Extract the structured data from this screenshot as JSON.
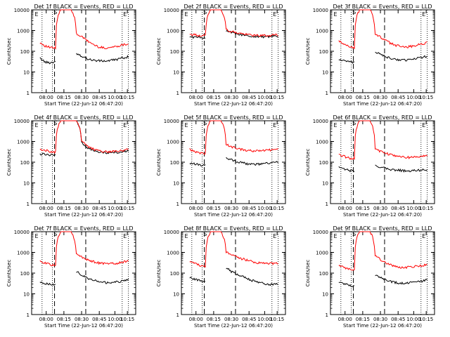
{
  "figure": {
    "xlabel": "Start Time (22-Jun-12 06:47:20)",
    "ylabel": "Counts/sec",
    "x_tick_labels": [
      "08:00",
      "08:15",
      "08:30",
      "08:45",
      "10:00",
      "10:15"
    ],
    "y_tick_labels": [
      "1",
      "10",
      "100",
      "1000",
      "10000"
    ],
    "marker_letters": {
      "E": "E",
      "S": "S"
    },
    "colors": {
      "events": "#000000",
      "lld": "#ff0000",
      "axes": "#000000"
    }
  },
  "chart_data": [
    {
      "type": "line",
      "title": "Det 1f BLACK = Events, RED = LLD",
      "ylim": [
        1,
        10000
      ],
      "ylog": true,
      "series": [
        {
          "name": "Events",
          "color": "#000000",
          "values": [
            45,
            30,
            28,
            32,
            0,
            0,
            0,
            80,
            60,
            45,
            38,
            35,
            34,
            34,
            38,
            42,
            48,
            55
          ]
        },
        {
          "name": "LLD",
          "color": "#ff0000",
          "values": [
            260,
            180,
            150,
            140,
            10000,
            10000,
            10000,
            700,
            500,
            330,
            230,
            170,
            150,
            145,
            160,
            180,
            210,
            230
          ]
        }
      ]
    },
    {
      "type": "line",
      "title": "Det 2f BLACK = Events, RED = LLD",
      "ylim": [
        1,
        10000
      ],
      "ylog": true,
      "series": [
        {
          "name": "Events",
          "color": "#000000",
          "values": [
            500,
            480,
            460,
            450,
            0,
            0,
            0,
            950,
            800,
            700,
            620,
            560,
            520,
            510,
            500,
            510,
            530,
            550
          ]
        },
        {
          "name": "LLD",
          "color": "#ff0000",
          "values": [
            650,
            620,
            580,
            560,
            10000,
            10000,
            10000,
            1100,
            900,
            780,
            700,
            640,
            600,
            580,
            570,
            580,
            600,
            620
          ]
        }
      ]
    },
    {
      "type": "line",
      "title": "Det 3f BLACK = Events, RED = LLD",
      "ylim": [
        1,
        10000
      ],
      "ylog": true,
      "series": [
        {
          "name": "Events",
          "color": "#000000",
          "values": [
            40,
            35,
            30,
            28,
            0,
            0,
            0,
            90,
            70,
            55,
            45,
            40,
            38,
            38,
            40,
            45,
            52,
            58
          ]
        },
        {
          "name": "LLD",
          "color": "#ff0000",
          "values": [
            300,
            220,
            170,
            150,
            10000,
            10000,
            10000,
            650,
            480,
            330,
            240,
            190,
            170,
            165,
            175,
            200,
            230,
            260
          ]
        }
      ]
    },
    {
      "type": "line",
      "title": "Det 4f BLACK = Events, RED = LLD",
      "ylim": [
        1,
        10000
      ],
      "ylog": true,
      "series": [
        {
          "name": "Events",
          "color": "#000000",
          "values": [
            250,
            240,
            230,
            220,
            0,
            0,
            0,
            10000,
            900,
            500,
            380,
            320,
            300,
            290,
            290,
            300,
            320,
            350
          ]
        },
        {
          "name": "LLD",
          "color": "#ff0000",
          "values": [
            420,
            380,
            330,
            300,
            10000,
            10000,
            10000,
            10000,
            1100,
            620,
            450,
            360,
            330,
            320,
            330,
            350,
            380,
            420
          ]
        }
      ]
    },
    {
      "type": "line",
      "title": "Det 5f BLACK = Events, RED = LLD",
      "ylim": [
        1,
        10000
      ],
      "ylog": true,
      "series": [
        {
          "name": "Events",
          "color": "#000000",
          "values": [
            90,
            80,
            75,
            70,
            0,
            0,
            0,
            160,
            130,
            110,
            95,
            85,
            80,
            80,
            82,
            88,
            95,
            100
          ]
        },
        {
          "name": "LLD",
          "color": "#ff0000",
          "values": [
            420,
            330,
            280,
            260,
            10000,
            10000,
            10000,
            700,
            560,
            470,
            410,
            370,
            350,
            350,
            360,
            380,
            410,
            430
          ]
        }
      ]
    },
    {
      "type": "line",
      "title": "Det 6f BLACK = Events, RED = LLD",
      "ylim": [
        1,
        10000
      ],
      "ylog": true,
      "series": [
        {
          "name": "Events",
          "color": "#000000",
          "values": [
            55,
            45,
            40,
            38,
            0,
            0,
            0,
            70,
            60,
            52,
            45,
            42,
            40,
            38,
            38,
            40,
            42,
            45
          ]
        },
        {
          "name": "LLD",
          "color": "#ff0000",
          "values": [
            220,
            190,
            160,
            140,
            10000,
            10000,
            10000,
            420,
            330,
            270,
            230,
            200,
            180,
            170,
            170,
            180,
            190,
            210
          ]
        }
      ]
    },
    {
      "type": "line",
      "title": "Det 7f BLACK = Events, RED = LLD",
      "ylim": [
        1,
        10000
      ],
      "ylog": true,
      "series": [
        {
          "name": "Events",
          "color": "#000000",
          "values": [
            40,
            32,
            28,
            26,
            0,
            0,
            0,
            120,
            80,
            60,
            48,
            40,
            36,
            34,
            35,
            38,
            42,
            48
          ]
        },
        {
          "name": "LLD",
          "color": "#ff0000",
          "values": [
            380,
            300,
            260,
            240,
            10000,
            10000,
            10000,
            850,
            620,
            470,
            380,
            320,
            290,
            280,
            290,
            310,
            340,
            380
          ]
        }
      ]
    },
    {
      "type": "line",
      "title": "Det 8f BLACK = Events, RED = LLD",
      "ylim": [
        1,
        10000
      ],
      "ylog": true,
      "series": [
        {
          "name": "Events",
          "color": "#000000",
          "values": [
            60,
            50,
            45,
            40,
            0,
            0,
            0,
            180,
            120,
            90,
            70,
            55,
            45,
            38,
            33,
            30,
            28,
            30
          ]
        },
        {
          "name": "LLD",
          "color": "#ff0000",
          "values": [
            380,
            290,
            230,
            200,
            10000,
            10000,
            10000,
            1000,
            800,
            620,
            500,
            420,
            360,
            320,
            300,
            290,
            290,
            300
          ]
        }
      ]
    },
    {
      "type": "line",
      "title": "Det 9f BLACK = Events, RED = LLD",
      "ylim": [
        1,
        10000
      ],
      "ylog": true,
      "series": [
        {
          "name": "Events",
          "color": "#000000",
          "values": [
            38,
            30,
            26,
            24,
            0,
            0,
            0,
            80,
            60,
            48,
            40,
            35,
            33,
            33,
            35,
            38,
            42,
            48
          ]
        },
        {
          "name": "LLD",
          "color": "#ff0000",
          "values": [
            240,
            190,
            160,
            150,
            10000,
            10000,
            10000,
            700,
            450,
            320,
            250,
            210,
            190,
            190,
            200,
            215,
            235,
            260
          ]
        }
      ]
    }
  ]
}
